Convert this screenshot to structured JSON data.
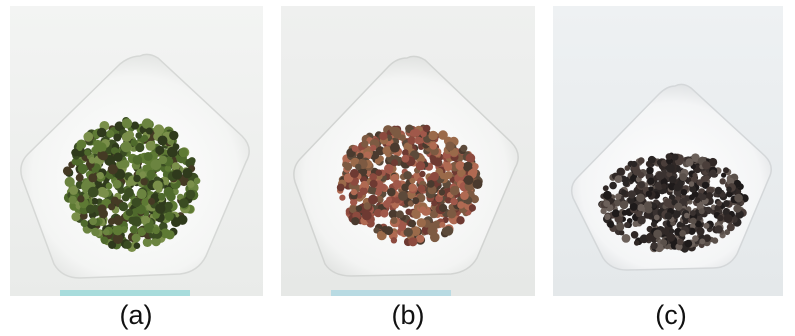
{
  "figure": {
    "panels": [
      {
        "label": "(a)",
        "subject": "green-peppercorn-sample",
        "dominant_color": "#4f6a2c"
      },
      {
        "label": "(b)",
        "subject": "red-peppercorn-sample",
        "dominant_color": "#8c4a3e"
      },
      {
        "label": "(c)",
        "subject": "dark-peppercorn-sample",
        "dominant_color": "#2a2524"
      }
    ]
  }
}
